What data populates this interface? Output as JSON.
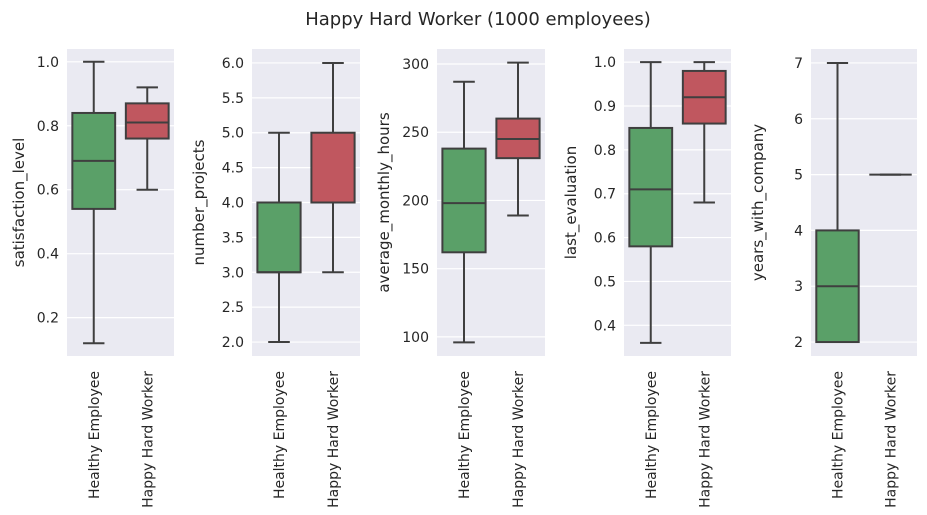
{
  "figure_title": "Happy Hard Worker (1000 employees)",
  "colors": {
    "healthy": "#5aa068",
    "hard": "#c0575f",
    "panel_bg": "#eaeaf2",
    "grid": "#ffffff",
    "line": "#3f3f3f"
  },
  "chart_data": [
    {
      "type": "boxplot",
      "ylabel": "satisfaction_level",
      "categories": [
        "Healthy Employee",
        "Happy Hard Worker"
      ],
      "ylim": [
        0.08,
        1.04
      ],
      "yticks": [
        0.2,
        0.4,
        0.6,
        0.8,
        1.0
      ],
      "ytick_labels": [
        "0.2",
        "0.4",
        "0.6",
        "0.8",
        "1.0"
      ],
      "boxes": [
        {
          "name": "Healthy Employee",
          "whisker_low": 0.12,
          "q1": 0.54,
          "median": 0.69,
          "q3": 0.84,
          "whisker_high": 1.0
        },
        {
          "name": "Happy Hard Worker",
          "whisker_low": 0.6,
          "q1": 0.76,
          "median": 0.81,
          "q3": 0.87,
          "whisker_high": 0.92
        }
      ]
    },
    {
      "type": "boxplot",
      "ylabel": "number_projects",
      "categories": [
        "Healthy Employee",
        "Happy Hard Worker"
      ],
      "ylim": [
        1.8,
        6.2
      ],
      "yticks": [
        2.0,
        2.5,
        3.0,
        3.5,
        4.0,
        4.5,
        5.0,
        5.5,
        6.0
      ],
      "ytick_labels": [
        "2.0",
        "2.5",
        "3.0",
        "3.5",
        "4.0",
        "4.5",
        "5.0",
        "5.5",
        "6.0"
      ],
      "boxes": [
        {
          "name": "Healthy Employee",
          "whisker_low": 2.0,
          "q1": 3.0,
          "median": 3.0,
          "q3": 4.0,
          "whisker_high": 5.0
        },
        {
          "name": "Happy Hard Worker",
          "whisker_low": 3.0,
          "q1": 4.0,
          "median": 4.0,
          "q3": 5.0,
          "whisker_high": 6.0
        }
      ]
    },
    {
      "type": "boxplot",
      "ylabel": "average_monthly_hours",
      "categories": [
        "Healthy Employee",
        "Happy Hard Worker"
      ],
      "ylim": [
        86,
        311
      ],
      "yticks": [
        100,
        150,
        200,
        250,
        300
      ],
      "ytick_labels": [
        "100",
        "150",
        "200",
        "250",
        "300"
      ],
      "boxes": [
        {
          "name": "Healthy Employee",
          "whisker_low": 96,
          "q1": 162,
          "median": 198,
          "q3": 238,
          "whisker_high": 287
        },
        {
          "name": "Happy Hard Worker",
          "whisker_low": 189,
          "q1": 231,
          "median": 245,
          "q3": 260,
          "whisker_high": 301
        }
      ]
    },
    {
      "type": "boxplot",
      "ylabel": "last_evaluation",
      "categories": [
        "Healthy Employee",
        "Happy Hard Worker"
      ],
      "ylim": [
        0.33,
        1.03
      ],
      "yticks": [
        0.4,
        0.5,
        0.6,
        0.7,
        0.8,
        0.9,
        1.0
      ],
      "ytick_labels": [
        "0.4",
        "0.5",
        "0.6",
        "0.7",
        "0.8",
        "0.9",
        "1.0"
      ],
      "boxes": [
        {
          "name": "Healthy Employee",
          "whisker_low": 0.36,
          "q1": 0.58,
          "median": 0.71,
          "q3": 0.85,
          "whisker_high": 1.0
        },
        {
          "name": "Happy Hard Worker",
          "whisker_low": 0.68,
          "q1": 0.86,
          "median": 0.92,
          "q3": 0.98,
          "whisker_high": 1.0
        }
      ]
    },
    {
      "type": "boxplot",
      "ylabel": "years_with_company",
      "categories": [
        "Healthy Employee",
        "Happy Hard Worker"
      ],
      "ylim": [
        1.75,
        7.25
      ],
      "yticks": [
        2,
        3,
        4,
        5,
        6,
        7
      ],
      "ytick_labels": [
        "2",
        "3",
        "4",
        "5",
        "6",
        "7"
      ],
      "boxes": [
        {
          "name": "Healthy Employee",
          "whisker_low": 2,
          "q1": 2,
          "median": 3,
          "q3": 4,
          "whisker_high": 7
        },
        {
          "name": "Happy Hard Worker",
          "whisker_low": 5,
          "q1": 5,
          "median": 5,
          "q3": 5,
          "whisker_high": 5
        }
      ]
    }
  ]
}
